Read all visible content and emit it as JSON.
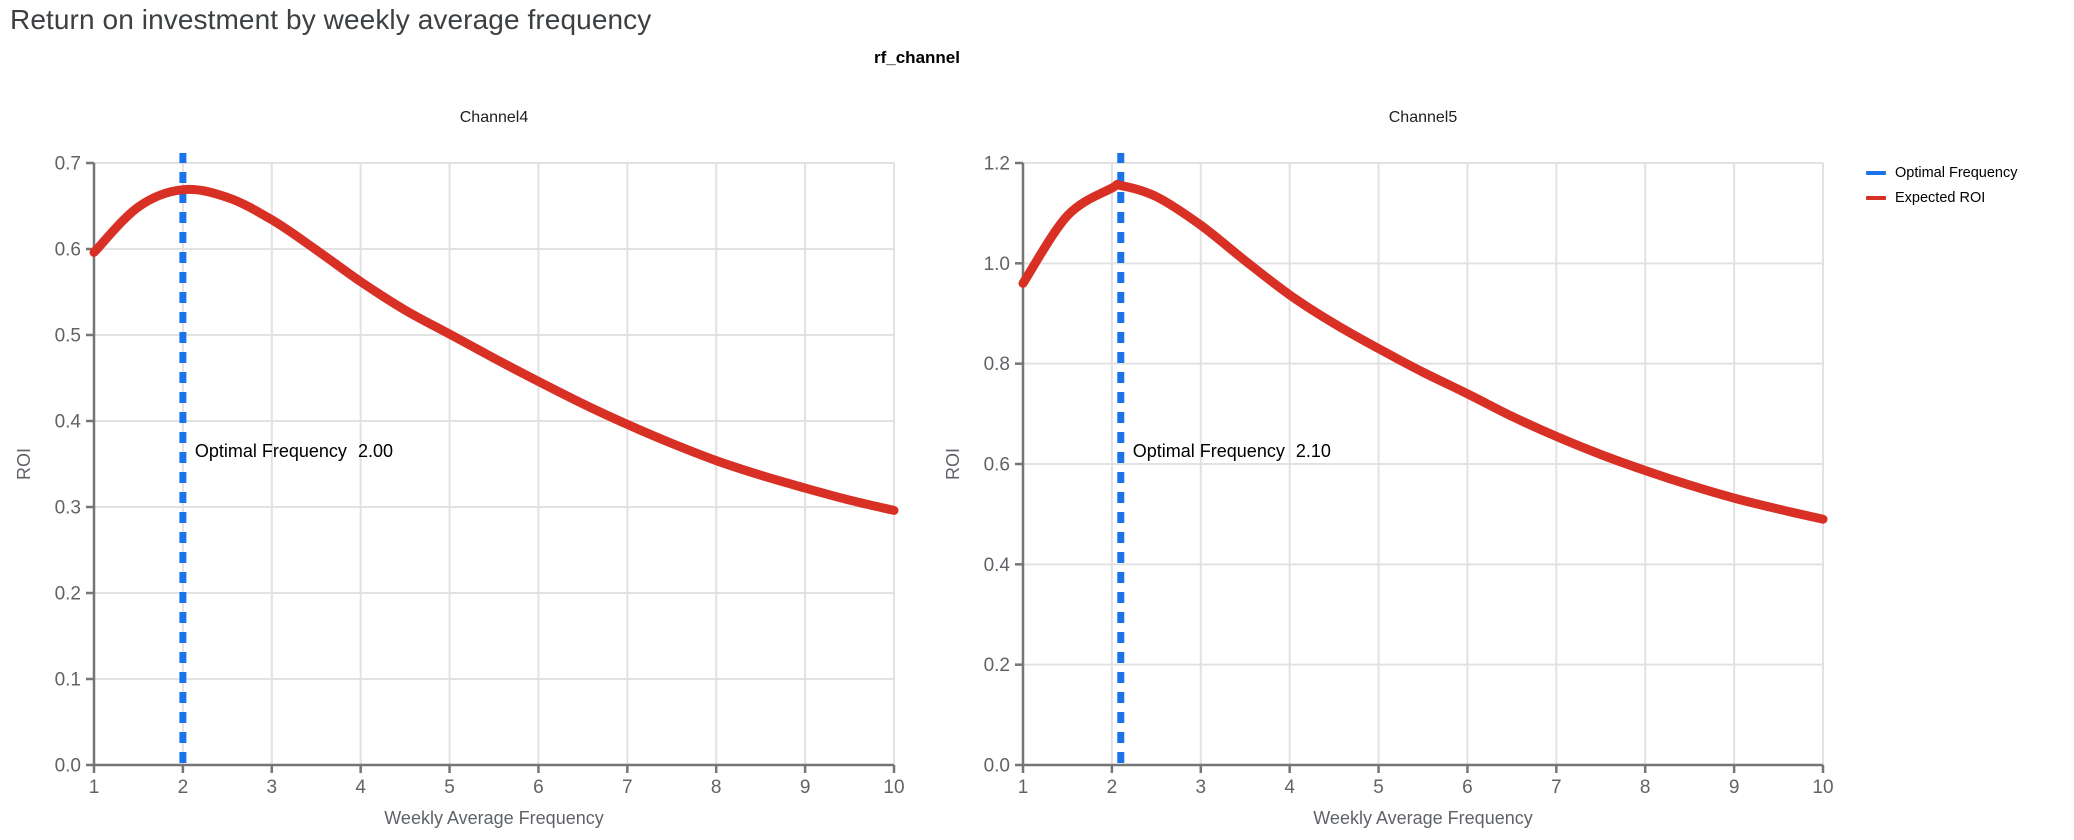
{
  "page": {
    "title": "Return on investment by weekly average frequency",
    "facet_field": "rf_channel"
  },
  "legend": {
    "position": "right-top",
    "items": [
      {
        "label": "Optimal Frequency",
        "color": "#1a73e8"
      },
      {
        "label": "Expected ROI",
        "color": "#d93025"
      }
    ]
  },
  "style": {
    "grid_color": "#e2e2e2",
    "spine_color": "#757575",
    "tick_label_color": "#5f6368",
    "axis_title_color": "#5f6368",
    "facet_title_color": "#202124",
    "annotation_color": "#000000",
    "curve_color": "#d93025",
    "vline_color": "#1a73e8"
  },
  "chart_data": [
    {
      "type": "line",
      "title": "Channel4",
      "xlabel": "Weekly Average Frequency",
      "ylabel": "ROI",
      "xlim": [
        1,
        10
      ],
      "ylim": [
        0,
        0.7
      ],
      "xticks": [
        1,
        2,
        3,
        4,
        5,
        6,
        7,
        8,
        9,
        10
      ],
      "xtick_labels": [
        "1",
        "2",
        "3",
        "4",
        "5",
        "6",
        "7",
        "8",
        "9",
        "10"
      ],
      "yticks": [
        0,
        0.1,
        0.2,
        0.3,
        0.4,
        0.5,
        0.6,
        0.7
      ],
      "ytick_labels": [
        "0.0",
        "0.1",
        "0.2",
        "0.3",
        "0.4",
        "0.5",
        "0.6",
        "0.7"
      ],
      "grid": true,
      "optimal_frequency": 2.0,
      "annotation": {
        "label": "Optimal Frequency",
        "value": "2.00"
      },
      "series": [
        {
          "name": "Expected ROI",
          "x": [
            1,
            1.5,
            2,
            2.5,
            3,
            3.5,
            4,
            4.5,
            5,
            5.5,
            6,
            6.5,
            7,
            7.5,
            8,
            8.5,
            9,
            9.5,
            10
          ],
          "y": [
            0.596,
            0.649,
            0.669,
            0.66,
            0.634,
            0.599,
            0.562,
            0.529,
            0.501,
            0.473,
            0.446,
            0.42,
            0.396,
            0.374,
            0.354,
            0.337,
            0.322,
            0.308,
            0.296
          ]
        }
      ]
    },
    {
      "type": "line",
      "title": "Channel5",
      "xlabel": "Weekly Average Frequency",
      "ylabel": "ROI",
      "xlim": [
        1,
        10
      ],
      "ylim": [
        0,
        1.2
      ],
      "xticks": [
        1,
        2,
        3,
        4,
        5,
        6,
        7,
        8,
        9,
        10
      ],
      "xtick_labels": [
        "1",
        "2",
        "3",
        "4",
        "5",
        "6",
        "7",
        "8",
        "9",
        "10"
      ],
      "yticks": [
        0,
        0.2,
        0.4,
        0.6,
        0.8,
        1.0,
        1.2
      ],
      "ytick_labels": [
        "0.0",
        "0.2",
        "0.4",
        "0.6",
        "0.8",
        "1.0",
        "1.2"
      ],
      "grid": true,
      "optimal_frequency": 2.1,
      "annotation": {
        "label": "Optimal Frequency",
        "value": "2.10"
      },
      "series": [
        {
          "name": "Expected ROI",
          "x": [
            1,
            1.5,
            2,
            2.1,
            2.5,
            3,
            3.5,
            4,
            4.5,
            5,
            5.5,
            6,
            6.5,
            7,
            7.5,
            8,
            8.5,
            9,
            9.5,
            10
          ],
          "y": [
            0.96,
            1.095,
            1.15,
            1.155,
            1.133,
            1.076,
            1.005,
            0.937,
            0.88,
            0.83,
            0.783,
            0.74,
            0.695,
            0.655,
            0.619,
            0.587,
            0.558,
            0.532,
            0.51,
            0.49
          ]
        }
      ]
    }
  ]
}
